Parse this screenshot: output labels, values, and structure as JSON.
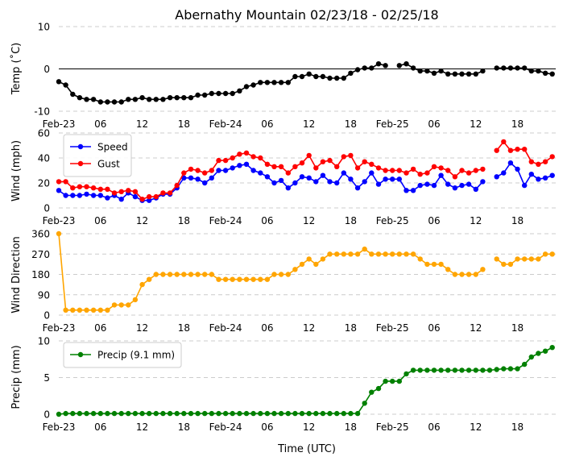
{
  "chart_data": {
    "title": "Abernathy Mountain 02/23/18 - 02/25/18",
    "xlabel": "Time (UTC)",
    "x_range_hours": [
      0,
      71.5
    ],
    "x_ticks": [
      {
        "h": 0,
        "label": "Feb-23"
      },
      {
        "h": 6,
        "label": "06"
      },
      {
        "h": 12,
        "label": "12"
      },
      {
        "h": 18,
        "label": "18"
      },
      {
        "h": 24,
        "label": "Feb-24"
      },
      {
        "h": 30,
        "label": "06"
      },
      {
        "h": 36,
        "label": "12"
      },
      {
        "h": 42,
        "label": "18"
      },
      {
        "h": 48,
        "label": "Feb-25"
      },
      {
        "h": 54,
        "label": "06"
      },
      {
        "h": 60,
        "label": "12"
      },
      {
        "h": 66,
        "label": "18"
      }
    ],
    "panels": [
      {
        "type": "line",
        "id": "temp",
        "ylabel": "Temp (˚C)",
        "ylim": [
          -10,
          10
        ],
        "yticks": [
          -10,
          0,
          10
        ],
        "zero_line": 0,
        "legend": null,
        "series": [
          {
            "name": "Temp",
            "color": "#000000",
            "t0": 0,
            "dt": 1,
            "values": [
              -3,
              -3.8,
              -6,
              -6.8,
              -7.2,
              -7.2,
              -7.8,
              -7.8,
              -7.8,
              -7.8,
              -7.2,
              -7.2,
              -6.8,
              -7.2,
              -7.2,
              -7.2,
              -6.8,
              -6.8,
              -6.8,
              -6.8,
              -6.2,
              -6.2,
              -5.8,
              -5.8,
              -5.8,
              -5.8,
              -5.2,
              -4.2,
              -3.8,
              -3.2,
              -3.2,
              -3.2,
              -3.2,
              -3.2,
              -1.8,
              -1.8,
              -1.2,
              -1.8,
              -1.8,
              -2.2,
              -2.2,
              -2.2,
              -1,
              -0.2,
              0.2,
              0.2,
              1.2,
              0.8,
              null,
              0.8,
              1.2,
              0.2,
              -0.5,
              -0.5,
              -1,
              -0.5,
              -1.2,
              -1.2,
              -1.2,
              -1.2,
              -1.2,
              -0.5,
              null,
              0.2,
              0.2,
              0.2,
              0.2,
              0.2,
              -0.5,
              -0.5,
              -1,
              -1.2
            ]
          }
        ]
      },
      {
        "type": "line",
        "id": "wind",
        "ylabel": "Wind (mph)",
        "ylim": [
          0,
          60
        ],
        "yticks": [
          0,
          20,
          40,
          60
        ],
        "zero_line": null,
        "legend": "top-left",
        "series": [
          {
            "name": "Speed",
            "color": "#0000ff",
            "t0": 0,
            "dt": 1,
            "values": [
              14,
              10,
              10,
              10,
              11,
              10,
              10,
              8,
              10,
              7,
              12,
              9,
              6,
              6,
              8,
              11,
              11,
              16,
              24,
              24,
              23,
              20,
              24,
              30,
              30,
              32,
              34,
              35,
              30,
              28,
              25,
              20,
              22,
              16,
              20,
              25,
              24,
              21,
              26,
              21,
              20,
              28,
              23,
              16,
              21,
              28,
              19,
              23,
              23,
              23,
              14,
              14,
              18,
              19,
              18,
              26,
              19,
              16,
              18,
              19,
              15,
              21,
              null,
              25,
              28,
              36,
              31,
              18,
              27,
              23,
              24,
              26
            ]
          },
          {
            "name": "Gust",
            "color": "#ff0000",
            "t0": 0,
            "dt": 1,
            "values": [
              21,
              21,
              16,
              17,
              17,
              16,
              15,
              15,
              12,
              13,
              14,
              13,
              7,
              9,
              9,
              12,
              12,
              18,
              28,
              31,
              30,
              28,
              30,
              38,
              38,
              40,
              43,
              44,
              41,
              40,
              35,
              33,
              33,
              28,
              33,
              36,
              42,
              32,
              37,
              38,
              33,
              41,
              42,
              32,
              37,
              35,
              32,
              30,
              30,
              30,
              28,
              31,
              27,
              28,
              33,
              32,
              30,
              25,
              30,
              28,
              30,
              31,
              null,
              46,
              53,
              46,
              47,
              47,
              37,
              35,
              37,
              41
            ]
          }
        ]
      },
      {
        "type": "line",
        "id": "dir",
        "ylabel": "Wind Direction",
        "ylim": [
          0,
          360
        ],
        "yticks": [
          0,
          90,
          180,
          270,
          360
        ],
        "zero_line": null,
        "legend": null,
        "series": [
          {
            "name": "Direction",
            "color": "#ffa500",
            "t0": 0,
            "dt": 1,
            "values": [
              360,
              22,
              22,
              22,
              22,
              22,
              22,
              22,
              45,
              45,
              45,
              68,
              135,
              158,
              180,
              180,
              180,
              180,
              180,
              180,
              180,
              180,
              180,
              158,
              158,
              158,
              158,
              158,
              158,
              158,
              158,
              180,
              180,
              180,
              202,
              225,
              248,
              225,
              248,
              270,
              270,
              270,
              270,
              270,
              292,
              270,
              270,
              270,
              270,
              270,
              270,
              270,
              248,
              225,
              225,
              225,
              202,
              180,
              180,
              180,
              180,
              202,
              null,
              248,
              225,
              225,
              248,
              248,
              248,
              248,
              270,
              270
            ]
          }
        ]
      },
      {
        "type": "line",
        "id": "precip",
        "ylabel": "Precip (mm)",
        "ylim": [
          0,
          10
        ],
        "yticks": [
          0,
          5,
          10
        ],
        "zero_line": null,
        "legend": "top-left",
        "series": [
          {
            "name": "Precip (9.1 mm)",
            "color": "#008000",
            "t0": 0,
            "dt": 1,
            "values": [
              0,
              0.1,
              0.1,
              0.1,
              0.1,
              0.1,
              0.1,
              0.1,
              0.1,
              0.1,
              0.1,
              0.1,
              0.1,
              0.1,
              0.1,
              0.1,
              0.1,
              0.1,
              0.1,
              0.1,
              0.1,
              0.1,
              0.1,
              0.1,
              0.1,
              0.1,
              0.1,
              0.1,
              0.1,
              0.1,
              0.1,
              0.1,
              0.1,
              0.1,
              0.1,
              0.1,
              0.1,
              0.1,
              0.1,
              0.1,
              0.1,
              0.1,
              0.1,
              0.1,
              1.5,
              3.0,
              3.5,
              4.5,
              4.5,
              4.5,
              5.5,
              6.0,
              6.0,
              6.0,
              6.0,
              6.0,
              6.0,
              6.0,
              6.0,
              6.0,
              6.0,
              6.0,
              6.0,
              6.1,
              6.2,
              6.2,
              6.2,
              6.8,
              7.8,
              8.3,
              8.6,
              9.1
            ]
          }
        ]
      }
    ]
  }
}
